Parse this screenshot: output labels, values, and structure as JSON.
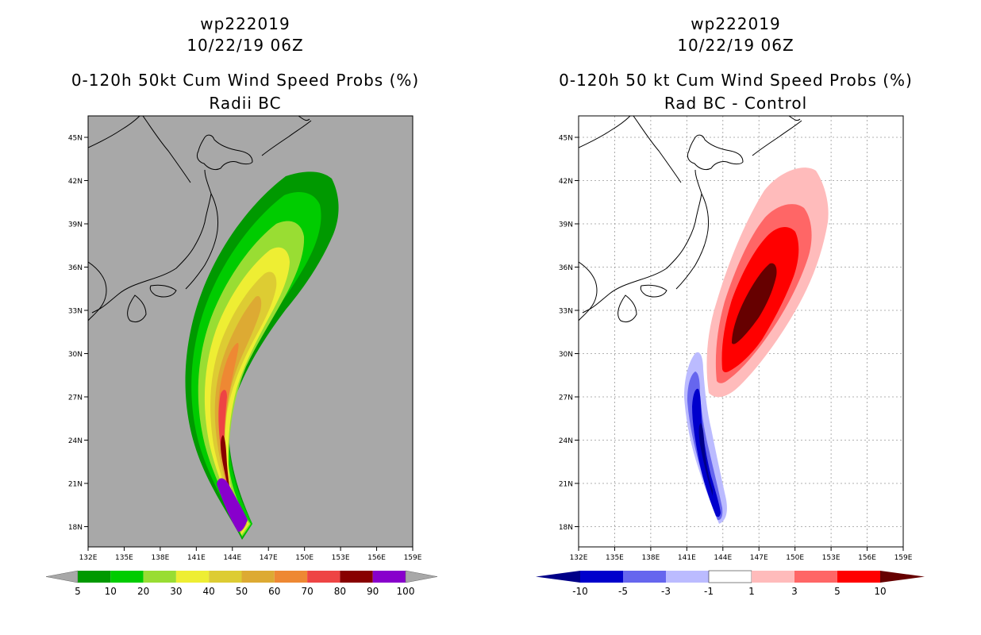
{
  "left_panel": {
    "storm_id": "wp222019",
    "datetime": "10/22/19 06Z",
    "product": "0-120h 50kt Cum Wind Speed Probs (%)",
    "subtitle": "Radii BC",
    "lat_labels": [
      "45N",
      "42N",
      "39N",
      "36N",
      "33N",
      "30N",
      "27N",
      "24N",
      "21N",
      "18N"
    ],
    "lon_labels": [
      "132E",
      "135E",
      "138E",
      "141E",
      "144E",
      "147E",
      "150E",
      "153E",
      "156E",
      "159E"
    ],
    "colorbar": {
      "colors": [
        "#009900",
        "#00cc00",
        "#99dd33",
        "#eeee33",
        "#ddcc33",
        "#ddaa33",
        "#ee8833",
        "#ee4444",
        "#880000",
        "#8800cc"
      ],
      "labels": [
        "5",
        "10",
        "20",
        "30",
        "40",
        "50",
        "60",
        "70",
        "80",
        "90",
        "100"
      ]
    }
  },
  "right_panel": {
    "storm_id": "wp222019",
    "datetime": "10/22/19 06Z",
    "product": "0-120h 50 kt Cum Wind Speed Probs (%)",
    "subtitle": "Rad BC - Control",
    "lat_labels": [
      "45N",
      "42N",
      "39N",
      "36N",
      "33N",
      "30N",
      "27N",
      "24N",
      "21N",
      "18N"
    ],
    "lon_labels": [
      "132E",
      "135E",
      "138E",
      "141E",
      "144E",
      "147E",
      "150E",
      "153E",
      "156E",
      "159E"
    ],
    "colorbar": {
      "colors": [
        "#0000cc",
        "#6666ee",
        "#bbbbff",
        "#ffffff",
        "#ffbbbb",
        "#ff6666",
        "#ff0000"
      ],
      "low_color": "#000088",
      "high_color": "#660000",
      "labels": [
        "-10",
        "-5",
        "-3",
        "-1",
        "1",
        "3",
        "5",
        "10"
      ]
    }
  }
}
